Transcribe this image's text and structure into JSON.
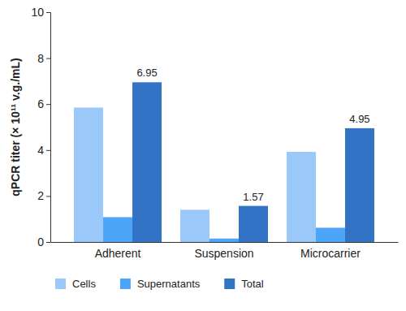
{
  "chart_data": {
    "type": "bar",
    "y_label": "qPCR titer (× 10¹¹ v.g./mL)",
    "categories": [
      "Adherent",
      "Suspension",
      "Microcarrier"
    ],
    "series": [
      {
        "name": "Cells",
        "color": "#99c8f9",
        "values": [
          5.85,
          1.4,
          3.92
        ]
      },
      {
        "name": "Supernatants",
        "color": "#4da5fa",
        "values": [
          1.08,
          0.15,
          0.62
        ]
      },
      {
        "name": "Total",
        "color": "#3273c6",
        "values": [
          6.95,
          1.57,
          4.95
        ],
        "data_labels": true
      }
    ],
    "ylim": [
      0,
      10
    ],
    "yticks": [
      0,
      2,
      4,
      6,
      8,
      10
    ],
    "grid": false,
    "legend": "bottom"
  }
}
